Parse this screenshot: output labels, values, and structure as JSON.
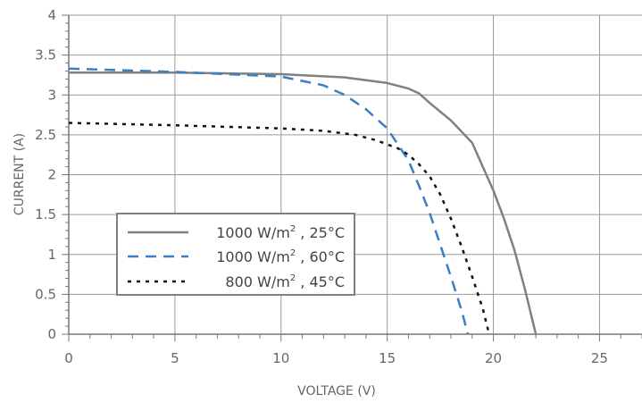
{
  "chart_data": {
    "type": "line",
    "title": "",
    "xlabel": "VOLTAGE (V)",
    "ylabel": "CURRENT (A)",
    "xlim": [
      0,
      27
    ],
    "ylim": [
      0,
      4
    ],
    "x_ticks": [
      0,
      5,
      10,
      15,
      20,
      25
    ],
    "x_tick_labels": [
      "0",
      "5",
      "10",
      "15",
      "20",
      "25"
    ],
    "y_ticks": [
      0,
      0.5,
      1,
      1.5,
      2,
      2.5,
      3,
      3.5,
      4
    ],
    "y_tick_labels": [
      "0",
      "0.5",
      "1",
      "1.5",
      "2",
      "2.5",
      "3",
      "3.5",
      "4"
    ],
    "grid": true,
    "legend_position": "lower-left",
    "series": [
      {
        "name": "1000 W/m2 , 25°C",
        "legend_main": "1000 W/m",
        "legend_sup": "2",
        "legend_tail": " , 25°C",
        "style": "solid",
        "color": "#808080",
        "x": [
          0,
          5,
          10,
          13,
          15,
          16,
          16.5,
          17,
          18,
          19,
          19.5,
          20,
          20.5,
          21,
          21.5,
          22
        ],
        "y": [
          3.28,
          3.28,
          3.26,
          3.22,
          3.15,
          3.08,
          3.02,
          2.9,
          2.68,
          2.4,
          2.1,
          1.8,
          1.45,
          1.05,
          0.55,
          0
        ]
      },
      {
        "name": "1000 W/m2 , 60°C",
        "legend_main": "1000 W/m",
        "legend_sup": "2",
        "legend_tail": " , 60°C",
        "style": "dashed",
        "color": "#3b7ec4",
        "x": [
          0,
          5,
          10,
          12,
          13,
          14,
          15,
          16,
          16.5,
          17,
          17.5,
          18,
          18.5,
          18.8
        ],
        "y": [
          3.33,
          3.29,
          3.23,
          3.12,
          3.0,
          2.82,
          2.58,
          2.18,
          1.86,
          1.52,
          1.12,
          0.72,
          0.3,
          0
        ]
      },
      {
        "name": "800 W/m2 , 45°C",
        "legend_main": "800 W/m",
        "legend_sup": "2",
        "legend_tail": " , 45°C",
        "style": "dotted",
        "color": "#111111",
        "x": [
          0,
          5,
          10,
          12,
          13.5,
          14.5,
          15,
          15.5,
          16,
          16.5,
          17,
          17.5,
          18,
          18.5,
          19,
          19.5,
          19.8
        ],
        "y": [
          2.65,
          2.62,
          2.58,
          2.55,
          2.5,
          2.43,
          2.38,
          2.33,
          2.25,
          2.13,
          1.98,
          1.75,
          1.45,
          1.1,
          0.72,
          0.32,
          0
        ]
      }
    ]
  }
}
